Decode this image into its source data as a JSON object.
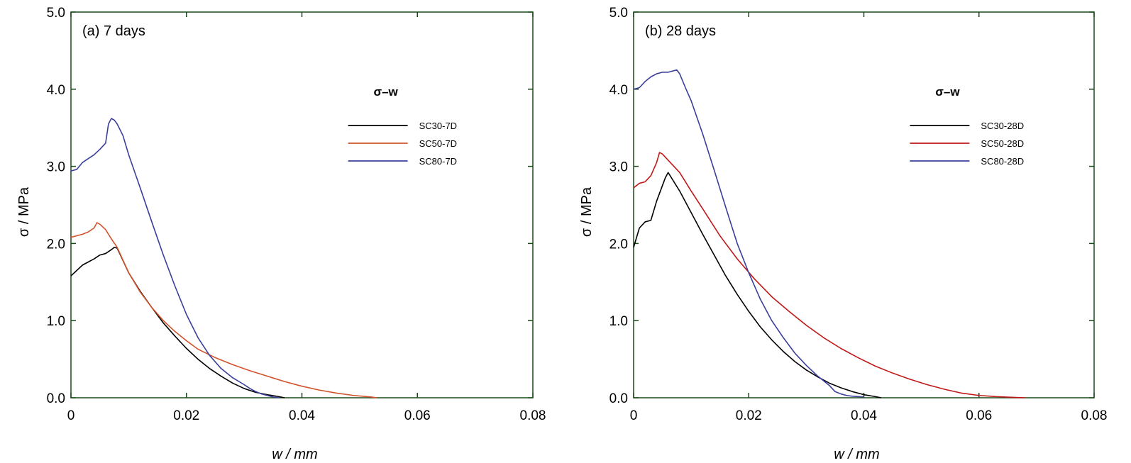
{
  "chart_data": [
    {
      "type": "line",
      "title": "(a) 7 days",
      "xlabel": "w / mm",
      "ylabel": "σ / MPa",
      "xlim": [
        0,
        0.08
      ],
      "ylim": [
        0,
        5.0
      ],
      "xticks": [
        "0",
        "0.02",
        "0.04",
        "0.06",
        "0.08"
      ],
      "yticks": [
        "0.0",
        "1.0",
        "2.0",
        "3.0",
        "4.0",
        "5.0"
      ],
      "legend_title": "σ–w",
      "legend_position": "right",
      "grid": false,
      "series": [
        {
          "name": "SC30-7D",
          "color": "#000000",
          "x": [
            0,
            0.001,
            0.002,
            0.003,
            0.004,
            0.005,
            0.006,
            0.007,
            0.0075,
            0.008,
            0.009,
            0.01,
            0.012,
            0.014,
            0.016,
            0.018,
            0.02,
            0.022,
            0.024,
            0.026,
            0.028,
            0.03,
            0.032,
            0.034,
            0.036,
            0.037
          ],
          "y": [
            1.58,
            1.65,
            1.72,
            1.76,
            1.8,
            1.85,
            1.87,
            1.92,
            1.95,
            1.94,
            1.78,
            1.62,
            1.38,
            1.17,
            0.97,
            0.8,
            0.64,
            0.5,
            0.38,
            0.28,
            0.19,
            0.12,
            0.07,
            0.04,
            0.015,
            0.0
          ]
        },
        {
          "name": "SC50-7D",
          "color": "#d2522a",
          "x": [
            0,
            0.001,
            0.002,
            0.003,
            0.004,
            0.0045,
            0.005,
            0.006,
            0.007,
            0.008,
            0.01,
            0.012,
            0.014,
            0.016,
            0.018,
            0.02,
            0.022,
            0.025,
            0.028,
            0.031,
            0.034,
            0.037,
            0.04,
            0.043,
            0.046,
            0.049,
            0.052,
            0.053
          ],
          "y": [
            2.08,
            2.1,
            2.12,
            2.15,
            2.2,
            2.27,
            2.25,
            2.18,
            2.06,
            1.95,
            1.62,
            1.37,
            1.17,
            1.0,
            0.86,
            0.74,
            0.63,
            0.52,
            0.43,
            0.35,
            0.28,
            0.21,
            0.15,
            0.1,
            0.06,
            0.03,
            0.01,
            0.0
          ]
        },
        {
          "name": "SC80-7D",
          "color": "#3a3f9a",
          "x": [
            0,
            0.001,
            0.002,
            0.003,
            0.004,
            0.005,
            0.006,
            0.0065,
            0.007,
            0.0075,
            0.008,
            0.009,
            0.01,
            0.012,
            0.014,
            0.016,
            0.018,
            0.02,
            0.022,
            0.024,
            0.026,
            0.028,
            0.03,
            0.031,
            0.032,
            0.033,
            0.034,
            0.035,
            0.036
          ],
          "y": [
            2.94,
            2.96,
            3.05,
            3.1,
            3.15,
            3.22,
            3.3,
            3.55,
            3.62,
            3.6,
            3.55,
            3.4,
            3.15,
            2.72,
            2.28,
            1.85,
            1.45,
            1.08,
            0.78,
            0.55,
            0.38,
            0.26,
            0.17,
            0.12,
            0.08,
            0.05,
            0.03,
            0.01,
            0.0
          ]
        }
      ]
    },
    {
      "type": "line",
      "title": "(b) 28 days",
      "xlabel": "w / mm",
      "ylabel": "σ / MPa",
      "xlim": [
        0,
        0.08
      ],
      "ylim": [
        0,
        5.0
      ],
      "xticks": [
        "0",
        "0.02",
        "0.04",
        "0.06",
        "0.08"
      ],
      "yticks": [
        "0.0",
        "1.0",
        "2.0",
        "3.0",
        "4.0",
        "5.0"
      ],
      "legend_title": "σ–w",
      "legend_position": "right",
      "grid": false,
      "series": [
        {
          "name": "SC30-28D",
          "color": "#000000",
          "x": [
            0,
            0.001,
            0.002,
            0.003,
            0.004,
            0.005,
            0.0055,
            0.006,
            0.007,
            0.008,
            0.01,
            0.012,
            0.014,
            0.016,
            0.018,
            0.02,
            0.022,
            0.024,
            0.026,
            0.028,
            0.03,
            0.032,
            0.034,
            0.036,
            0.038,
            0.04,
            0.042,
            0.043
          ],
          "y": [
            1.95,
            2.2,
            2.28,
            2.3,
            2.55,
            2.75,
            2.85,
            2.92,
            2.8,
            2.68,
            2.4,
            2.12,
            1.85,
            1.58,
            1.34,
            1.12,
            0.92,
            0.75,
            0.6,
            0.47,
            0.36,
            0.27,
            0.19,
            0.13,
            0.08,
            0.04,
            0.015,
            0.0
          ]
        },
        {
          "name": "SC50-28D",
          "color": "#c01818",
          "x": [
            0,
            0.001,
            0.002,
            0.003,
            0.004,
            0.0045,
            0.005,
            0.006,
            0.008,
            0.01,
            0.012,
            0.015,
            0.018,
            0.021,
            0.024,
            0.027,
            0.03,
            0.033,
            0.036,
            0.039,
            0.042,
            0.045,
            0.048,
            0.051,
            0.054,
            0.057,
            0.06,
            0.063,
            0.066,
            0.068
          ],
          "y": [
            2.72,
            2.78,
            2.8,
            2.88,
            3.05,
            3.18,
            3.16,
            3.08,
            2.92,
            2.68,
            2.45,
            2.1,
            1.8,
            1.54,
            1.31,
            1.12,
            0.94,
            0.78,
            0.64,
            0.52,
            0.41,
            0.32,
            0.24,
            0.17,
            0.11,
            0.06,
            0.03,
            0.015,
            0.005,
            0.0
          ]
        },
        {
          "name": "SC80-28D",
          "color": "#3a3f9a",
          "x": [
            0,
            0.001,
            0.002,
            0.003,
            0.004,
            0.005,
            0.006,
            0.007,
            0.0075,
            0.008,
            0.009,
            0.01,
            0.012,
            0.014,
            0.016,
            0.018,
            0.02,
            0.022,
            0.024,
            0.026,
            0.028,
            0.03,
            0.032,
            0.034,
            0.035,
            0.036,
            0.037,
            0.038,
            0.04
          ],
          "y": [
            4.0,
            4.02,
            4.1,
            4.16,
            4.2,
            4.22,
            4.22,
            4.24,
            4.25,
            4.2,
            4.02,
            3.85,
            3.42,
            2.95,
            2.47,
            2.0,
            1.62,
            1.28,
            1.0,
            0.78,
            0.58,
            0.42,
            0.28,
            0.16,
            0.08,
            0.05,
            0.03,
            0.02,
            0.01
          ]
        }
      ]
    }
  ]
}
